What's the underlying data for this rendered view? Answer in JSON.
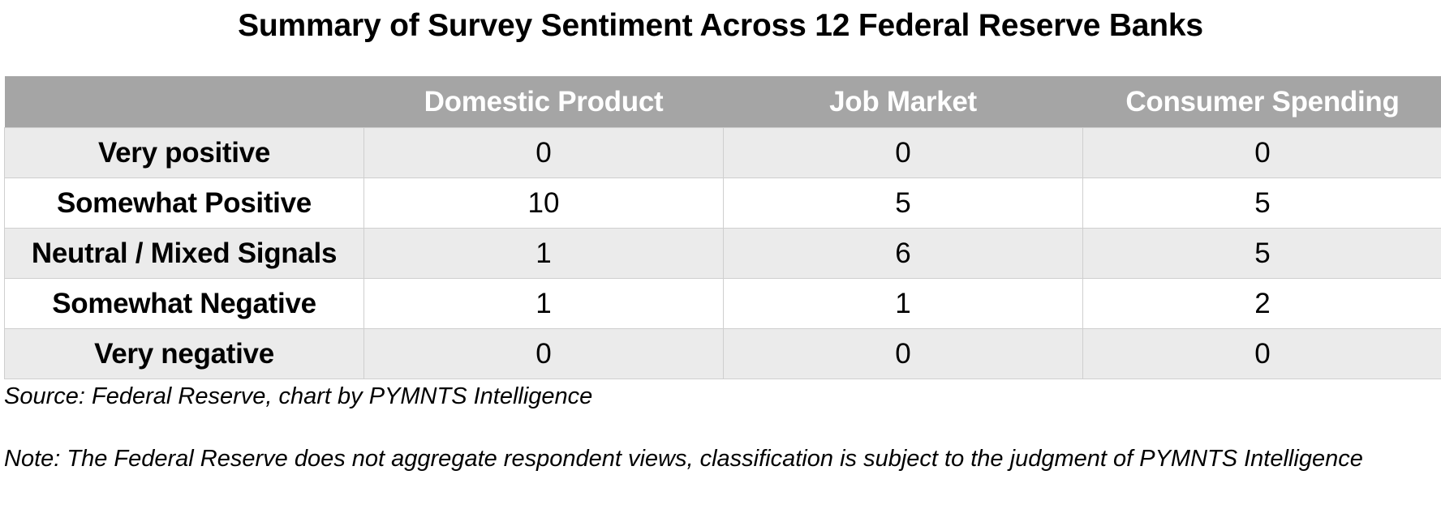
{
  "chart_data": {
    "type": "table",
    "title": "Summary of Survey Sentiment Across 12 Federal Reserve Banks",
    "columns": [
      "",
      "Domestic Product",
      "Job Market",
      "Consumer Spending"
    ],
    "rows": [
      {
        "label": "Very positive",
        "values": [
          0,
          0,
          0
        ]
      },
      {
        "label": "Somewhat Positive",
        "values": [
          10,
          5,
          5
        ]
      },
      {
        "label": "Neutral / Mixed Signals",
        "values": [
          1,
          6,
          5
        ]
      },
      {
        "label": "Somewhat Negative",
        "values": [
          1,
          1,
          2
        ]
      },
      {
        "label": "Very negative",
        "values": [
          0,
          0,
          0
        ]
      }
    ],
    "source": "Source: Federal Reserve, chart by PYMNTS Intelligence",
    "note": "Note: The Federal Reserve does not aggregate respondent views, classification is subject to the judgment of PYMNTS Intelligence",
    "colors": {
      "header_background": "#a5a5a5",
      "header_text": "#ffffff",
      "band_row_background": "#ebebeb",
      "plain_row_background": "#ffffff",
      "cell_border": "#cfcfcf"
    }
  }
}
